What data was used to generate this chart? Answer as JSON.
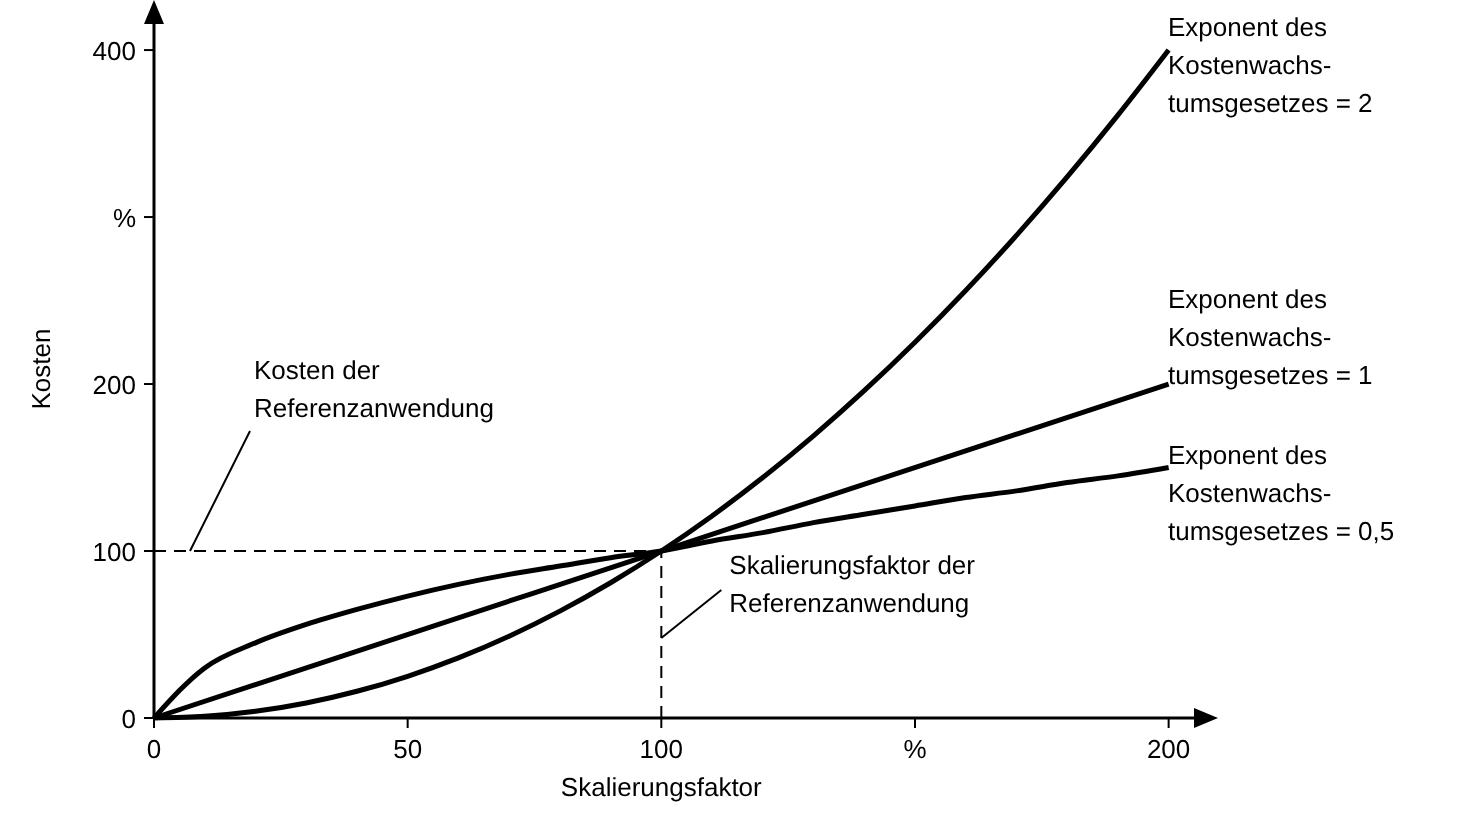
{
  "chart_data": {
    "type": "line",
    "xlabel": "Skalierungsfaktor",
    "ylabel": "Kosten",
    "xlim": [
      0,
      205
    ],
    "ylim": [
      0,
      418
    ],
    "xticks": [
      0,
      50,
      100,
      {
        "value": 150,
        "label": "%"
      },
      200
    ],
    "yticks": [
      0,
      100,
      200,
      {
        "value": 300,
        "label": "%"
      },
      400
    ],
    "grid": false,
    "marker": "none",
    "line_style": "solid",
    "series": [
      {
        "name": "Exponent des\nKostenwachs-\ntumsgesetzes = 2",
        "color": "#000000",
        "x": [
          0,
          10,
          20,
          30,
          40,
          50,
          60,
          70,
          80,
          90,
          100,
          110,
          120,
          130,
          140,
          150,
          160,
          170,
          180,
          190,
          200
        ],
        "values": [
          0,
          1,
          4,
          9,
          16,
          25,
          36,
          49,
          64,
          81,
          100,
          121,
          144,
          169,
          196,
          225,
          256,
          289,
          324,
          361,
          400
        ]
      },
      {
        "name": "Exponent des\nKostenwachs-\ntumsgesetzes = 1",
        "color": "#000000",
        "x": [
          0,
          100,
          200
        ],
        "values": [
          0,
          100,
          200
        ]
      },
      {
        "name": "Exponent des\nKostenwachs-\ntumsgesetzes = 0,5",
        "color": "#000000",
        "x": [
          0,
          10,
          20,
          30,
          40,
          50,
          60,
          70,
          80,
          90,
          100,
          110,
          120,
          130,
          140,
          150,
          160,
          170,
          180,
          190,
          200
        ],
        "values": [
          0,
          30,
          45,
          56,
          65,
          73,
          80,
          86,
          91,
          96,
          100,
          106,
          111,
          117,
          122,
          127,
          132,
          136,
          141,
          145,
          150
        ]
      }
    ],
    "ref_lines": [
      {
        "axis": "y",
        "value": 100,
        "label": "Kosten der\nReferenzanwendung",
        "line_style": "dashed"
      },
      {
        "axis": "x",
        "value": 100,
        "label": "Skalierungsfaktor der\nReferenzanwendung",
        "line_style": "dashed"
      }
    ]
  }
}
